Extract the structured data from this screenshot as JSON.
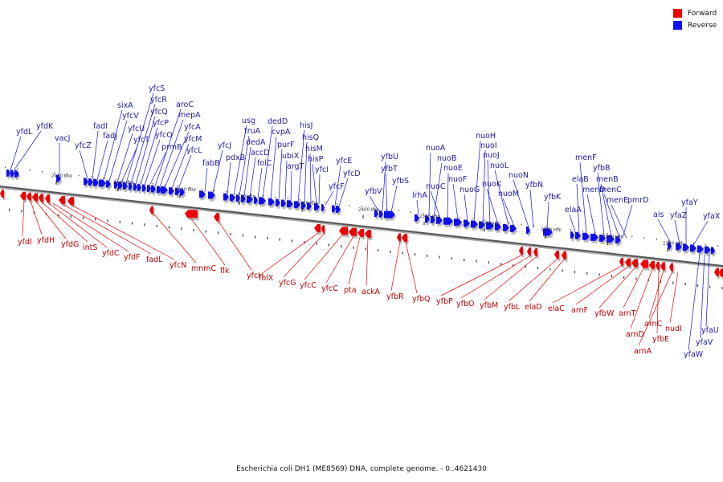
{
  "legend": {
    "forward_label": "Forward",
    "forward_color": "#ee0000",
    "reverse_label": "Reverse",
    "reverse_color": "#1010ee"
  },
  "caption": "Escherichia coli DH1 (ME8569) DNA, complete genome. - 0..4621430",
  "colors": {
    "forward_text": "#c00000",
    "reverse_text": "#1a1aa6",
    "backbone": "#555555"
  },
  "ticks": [
    "2450 kbp",
    "2440 kbp",
    "2430 kbp",
    "2420 kbp",
    "2410 kbp",
    "2400 kbp",
    "2390 kbp",
    "2380 kbp",
    "2370 kbp",
    "2360 kbp",
    "2350 kbp"
  ],
  "reverse_genes": [
    "yfdL",
    "yfdK",
    "vacJ",
    "yfcZ",
    "fadI",
    "fadJ",
    "sixA",
    "yfcV",
    "yfcU",
    "yfcT",
    "yfcS",
    "yfcR",
    "yfcQ",
    "yfcP",
    "yfcO",
    "prmB",
    "aroC",
    "mepA",
    "yfcA",
    "yfcM",
    "yfcL",
    "fabB",
    "yfcJ",
    "pdxB",
    "usg",
    "truA",
    "dedA",
    "accD",
    "folC",
    "dedD",
    "cvpA",
    "purF",
    "ubiX",
    "argT",
    "hisJ",
    "hisQ",
    "hisM",
    "hisP",
    "yfcI",
    "yfcF",
    "yfcE",
    "yfcD",
    "yfbV",
    "yfbU",
    "yfbT",
    "yfbS",
    "lrhA",
    "nuoA",
    "nuoB",
    "nuoC",
    "nuoE",
    "nuoF",
    "nuoG",
    "nuoH",
    "nuoI",
    "nuoJ",
    "nuoK",
    "nuoL",
    "nuoM",
    "nuoN",
    "yfbN",
    "yfbK",
    "elaA",
    "elaB",
    "menF",
    "menD",
    "yfbB",
    "menB",
    "menC",
    "menE",
    "pmrD",
    "ais",
    "yfaZ",
    "yfaY",
    "yfaX",
    "yfaU",
    "yfaV",
    "yfaW"
  ],
  "forward_genes": [
    "yfdI",
    "yfdH",
    "yfdG",
    "intS",
    "yfdC",
    "yfdF",
    "fadL",
    "yfcN",
    "mnmC",
    "flk",
    "yfcH",
    "folX",
    "yfcG",
    "yfcC",
    "yfcC",
    "pta",
    "ackA",
    "yfbR",
    "yfbQ",
    "yfbP",
    "yfbO",
    "yfbM",
    "yfbL",
    "elaD",
    "elaC",
    "arnF",
    "yfbW",
    "arnT",
    "arnD",
    "yfbE",
    "arnC",
    "arnA",
    "nudI"
  ]
}
